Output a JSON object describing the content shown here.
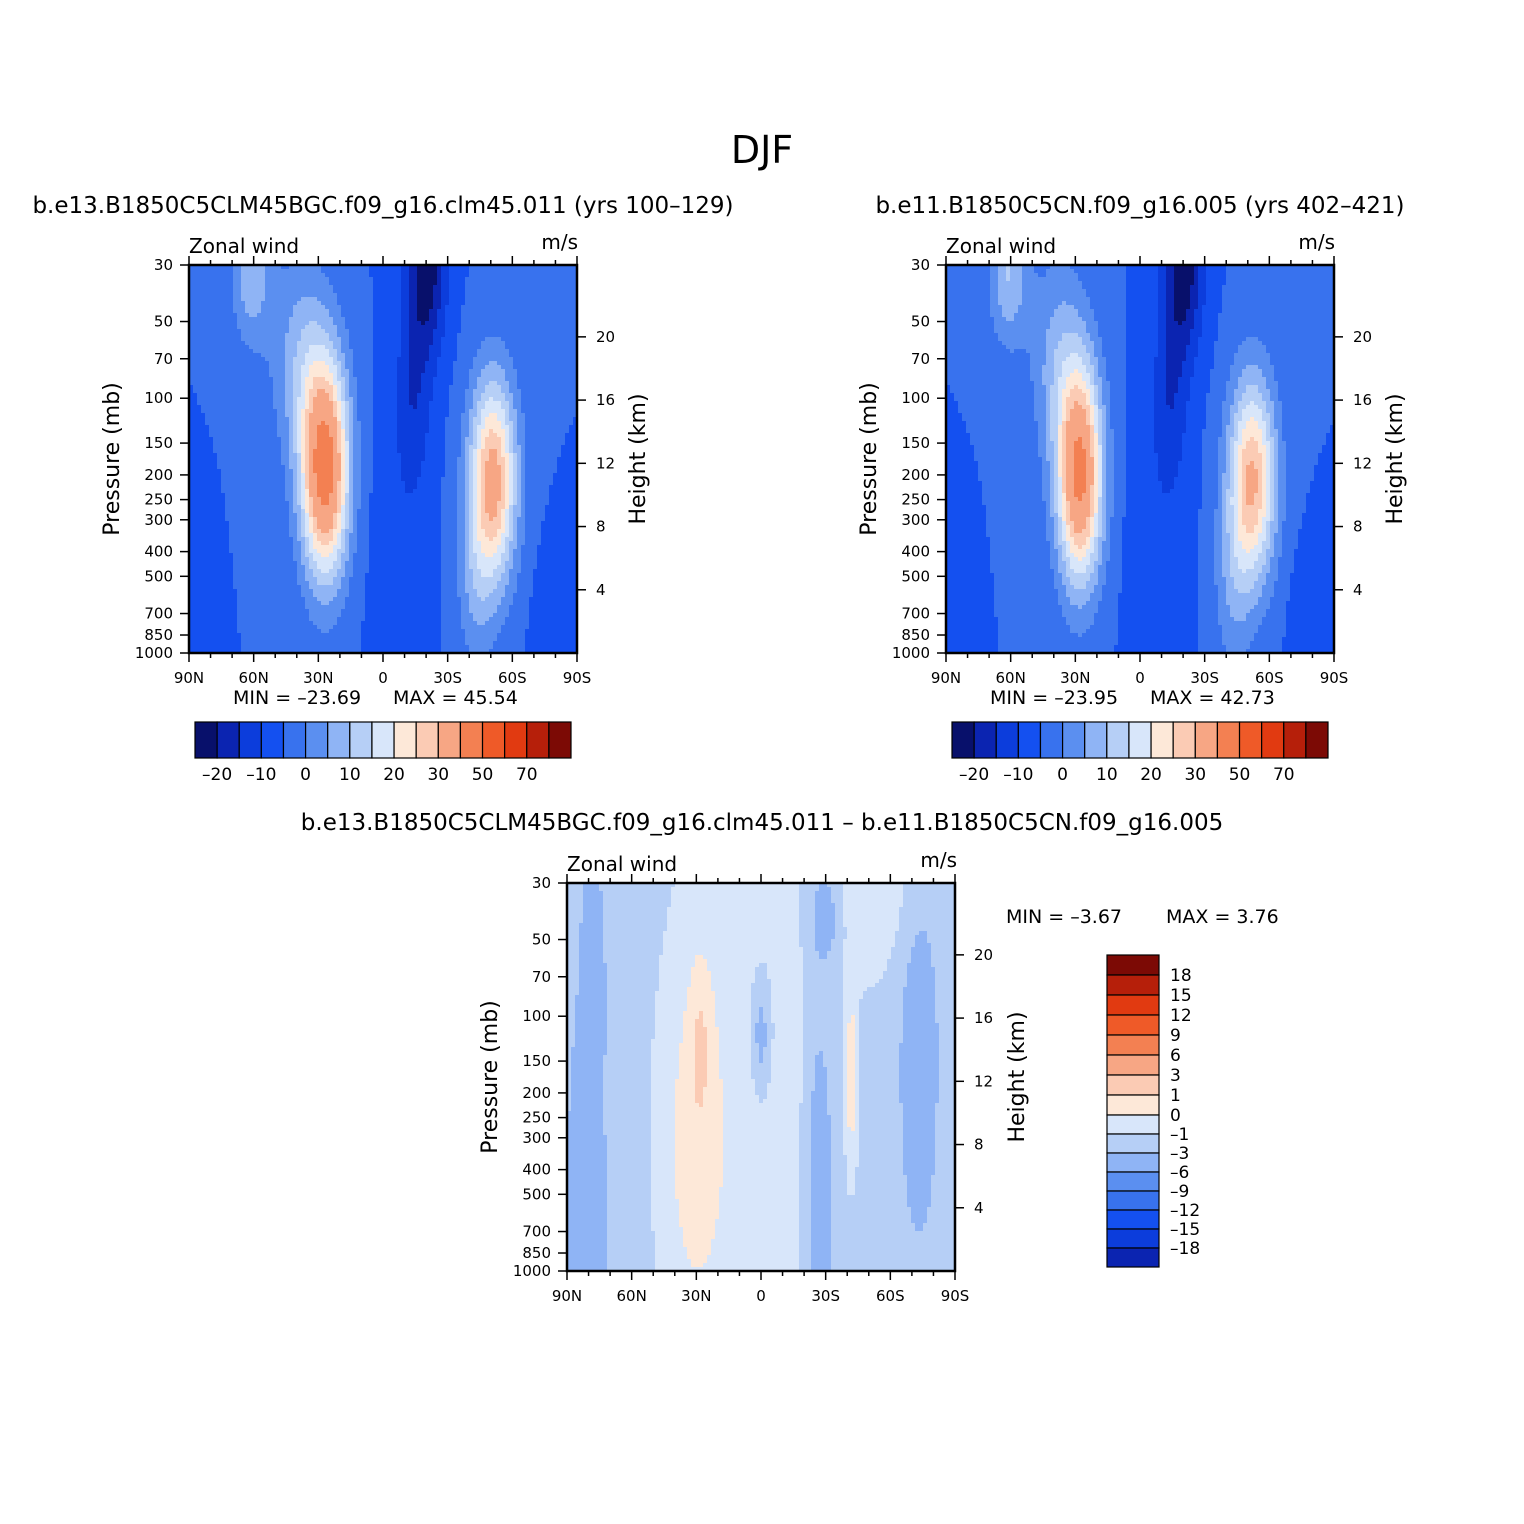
{
  "figure": {
    "title": "DJF",
    "diff_title": "b.e13.B1850C5CLM45BGC.f09_g16.clm45.011 – b.e11.B1850C5CN.f09_g16.005"
  },
  "colors": {
    "abs_levels": [
      "#08106b",
      "#0b24b1",
      "#0c3ddc",
      "#1450f0",
      "#3872ee",
      "#5b8ff0",
      "#8fb4f5",
      "#b6cff6",
      "#d8e6fa",
      "#fde8d8",
      "#fbcbb4",
      "#f7a684",
      "#f38052",
      "#ef5a28",
      "#e13a11",
      "#b61f0a",
      "#7c0a05"
    ],
    "diff_levels": [
      "#08106b",
      "#0b24b1",
      "#0c3ddc",
      "#1450f0",
      "#3872ee",
      "#5b8ff0",
      "#8fb4f5",
      "#b6cff6",
      "#d8e6fa",
      "#fde8d8",
      "#fbcbb4",
      "#f7a684",
      "#f38052",
      "#ef5a28",
      "#e13a11",
      "#b61f0a",
      "#7c0a05"
    ]
  },
  "chart_data": [
    {
      "type": "heatmap",
      "id": "case1",
      "title": "b.e13.B1850C5CLM45BGC.f09_g16.clm45.011 (yrs 100–129)",
      "left_label": "Zonal wind",
      "right_label": "m/s",
      "xlabel": "",
      "ylabel": "Pressure (mb)",
      "y2label": "Height (km)",
      "x_ticks": [
        "90N",
        "60N",
        "30N",
        "0",
        "30S",
        "60S",
        "90S"
      ],
      "x_range": [
        90,
        -90
      ],
      "y_ticks": [
        30,
        50,
        70,
        100,
        150,
        200,
        250,
        300,
        400,
        500,
        700,
        850,
        1000
      ],
      "y_range": [
        30,
        1000
      ],
      "y2_ticks": [
        4,
        8,
        12,
        16,
        20
      ],
      "min_text": "MIN = –23.69",
      "max_text": "MAX = 45.54",
      "min": -23.69,
      "max": 45.54,
      "levels": [
        -20,
        -15,
        -10,
        -5,
        0,
        5,
        10,
        15,
        20,
        25,
        30,
        40,
        50,
        60,
        70,
        80
      ],
      "colorbar_labels": [
        "–20",
        "–10",
        "0",
        "10",
        "20",
        "30",
        "50",
        "70"
      ],
      "colorbar_label_levels": [
        -20,
        -10,
        0,
        10,
        20,
        30,
        50,
        70
      ],
      "field": {
        "background": -5,
        "features": [
          {
            "lat": 61,
            "p": 32,
            "lat_w": 9,
            "logp_w": 0.28,
            "amp": 14
          },
          {
            "lat": 27,
            "p": 190,
            "lat_w": 11,
            "logp_w": 0.42,
            "amp": 50
          },
          {
            "lat": 38,
            "p": 70,
            "lat_w": 14,
            "logp_w": 0.4,
            "amp": 12
          },
          {
            "lat": -51,
            "p": 210,
            "lat_w": 11,
            "logp_w": 0.4,
            "amp": 38
          },
          {
            "lat": -43,
            "p": 550,
            "lat_w": 9,
            "logp_w": 0.35,
            "amp": 8
          },
          {
            "lat": -20,
            "p": 30,
            "lat_w": 9,
            "logp_w": 0.35,
            "amp": -19
          },
          {
            "lat": -14,
            "p": 100,
            "lat_w": 8,
            "logp_w": 0.35,
            "amp": -8
          },
          {
            "lat": -8,
            "p": 350,
            "lat_w": 14,
            "logp_w": 0.6,
            "amp": -3
          },
          {
            "lat": 86,
            "p": 850,
            "lat_w": 6,
            "logp_w": 0.3,
            "amp": -4
          },
          {
            "lat": -78,
            "p": 850,
            "lat_w": 8,
            "logp_w": 0.3,
            "amp": -4
          }
        ]
      }
    },
    {
      "type": "heatmap",
      "id": "case2",
      "title": "b.e11.B1850C5CN.f09_g16.005 (yrs 402–421)",
      "left_label": "Zonal wind",
      "right_label": "m/s",
      "xlabel": "",
      "ylabel": "Pressure (mb)",
      "y2label": "Height (km)",
      "x_ticks": [
        "90N",
        "60N",
        "30N",
        "0",
        "30S",
        "60S",
        "90S"
      ],
      "x_range": [
        90,
        -90
      ],
      "y_ticks": [
        30,
        50,
        70,
        100,
        150,
        200,
        250,
        300,
        400,
        500,
        700,
        850,
        1000
      ],
      "y_range": [
        30,
        1000
      ],
      "y2_ticks": [
        4,
        8,
        12,
        16,
        20
      ],
      "min_text": "MIN = –23.95",
      "max_text": "MAX = 42.73",
      "min": -23.95,
      "max": 42.73,
      "levels": [
        -20,
        -15,
        -10,
        -5,
        0,
        5,
        10,
        15,
        20,
        25,
        30,
        40,
        50,
        60,
        70,
        80
      ],
      "colorbar_labels": [
        "–20",
        "–10",
        "0",
        "10",
        "20",
        "30",
        "50",
        "70"
      ],
      "colorbar_label_levels": [
        -20,
        -10,
        0,
        10,
        20,
        30,
        50,
        70
      ],
      "field": {
        "background": -5,
        "features": [
          {
            "lat": 61,
            "p": 32,
            "lat_w": 9,
            "logp_w": 0.28,
            "amp": 15
          },
          {
            "lat": 28,
            "p": 200,
            "lat_w": 10.5,
            "logp_w": 0.42,
            "amp": 47
          },
          {
            "lat": 38,
            "p": 70,
            "lat_w": 13,
            "logp_w": 0.4,
            "amp": 11
          },
          {
            "lat": -52,
            "p": 210,
            "lat_w": 11,
            "logp_w": 0.4,
            "amp": 36
          },
          {
            "lat": -43,
            "p": 550,
            "lat_w": 9,
            "logp_w": 0.35,
            "amp": 8
          },
          {
            "lat": -20,
            "p": 30,
            "lat_w": 9,
            "logp_w": 0.35,
            "amp": -19
          },
          {
            "lat": -14,
            "p": 100,
            "lat_w": 8,
            "logp_w": 0.35,
            "amp": -8
          },
          {
            "lat": -8,
            "p": 350,
            "lat_w": 14,
            "logp_w": 0.6,
            "amp": -3
          },
          {
            "lat": 86,
            "p": 850,
            "lat_w": 6,
            "logp_w": 0.3,
            "amp": -4
          },
          {
            "lat": -78,
            "p": 850,
            "lat_w": 8,
            "logp_w": 0.3,
            "amp": -4
          }
        ]
      }
    },
    {
      "type": "heatmap",
      "id": "diff",
      "title": "b.e13.B1850C5CLM45BGC.f09_g16.clm45.011 – b.e11.B1850C5CN.f09_g16.005",
      "left_label": "Zonal wind",
      "right_label": "m/s",
      "xlabel": "",
      "ylabel": "Pressure (mb)",
      "y2label": "Height (km)",
      "x_ticks": [
        "90N",
        "60N",
        "30N",
        "0",
        "30S",
        "60S",
        "90S"
      ],
      "x_range": [
        90,
        -90
      ],
      "y_ticks": [
        30,
        50,
        70,
        100,
        150,
        200,
        250,
        300,
        400,
        500,
        700,
        850,
        1000
      ],
      "y_range": [
        30,
        1000
      ],
      "y2_ticks": [
        4,
        8,
        12,
        16,
        20
      ],
      "min_text": "MIN = –3.67",
      "max_text": "MAX = 3.76",
      "min": -3.67,
      "max": 3.76,
      "levels": [
        -18,
        -15,
        -12,
        -9,
        -6,
        -3,
        -1,
        0,
        1,
        3,
        6,
        9,
        12,
        15,
        18
      ],
      "colorbar_labels": [
        "18",
        "15",
        "12",
        "9",
        "6",
        "3",
        "1",
        "0",
        "–1",
        "–3",
        "–6",
        "–9",
        "–12",
        "–15",
        "–18"
      ],
      "field": {
        "background": -0.5,
        "features": [
          {
            "lat": 7,
            "p": 300,
            "lat_w": 45,
            "logp_w": 1.6,
            "amp": 1.2
          },
          {
            "lat": 31,
            "p": 300,
            "lat_w": 11,
            "logp_w": 0.55,
            "amp": 1.6
          },
          {
            "lat": 28,
            "p": 130,
            "lat_w": 4.5,
            "logp_w": 0.28,
            "amp": 2.4
          },
          {
            "lat": 78,
            "p": 60,
            "lat_w": 4.5,
            "logp_w": 0.35,
            "amp": -1.6
          },
          {
            "lat": -73,
            "p": 150,
            "lat_w": 9,
            "logp_w": 0.7,
            "amp": -1.4
          },
          {
            "lat": 80,
            "p": 250,
            "lat_w": 12,
            "logp_w": 0.7,
            "amp": -0.9
          },
          {
            "lat": -52,
            "p": 30,
            "lat_w": 20,
            "logp_w": 0.35,
            "amp": 1.2
          },
          {
            "lat": -27,
            "p": 500,
            "lat_w": 7,
            "logp_w": 0.8,
            "amp": -1.9
          },
          {
            "lat": 0,
            "p": 120,
            "lat_w": 5,
            "logp_w": 0.25,
            "amp": -1.9
          },
          {
            "lat": -42,
            "p": 170,
            "lat_w": 2.5,
            "logp_w": 0.3,
            "amp": 2.2
          },
          {
            "lat": -30,
            "p": 40,
            "lat_w": 8,
            "logp_w": 0.2,
            "amp": -1.6
          },
          {
            "lat": 85,
            "p": 1000,
            "lat_w": 15,
            "logp_w": 0.35,
            "amp": -0.9
          }
        ]
      }
    }
  ]
}
